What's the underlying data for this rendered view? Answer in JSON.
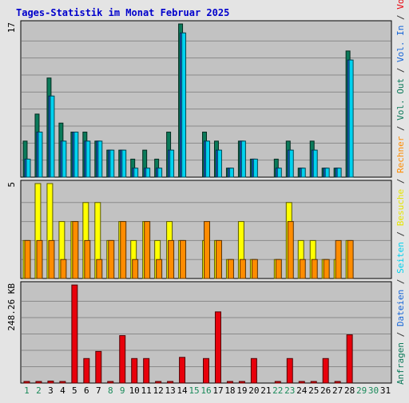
{
  "chart_data": {
    "type": "bar",
    "title": "Tages-Statistik im Monat Februar 2025",
    "x": [
      "1",
      "2",
      "3",
      "4",
      "5",
      "6",
      "7",
      "8",
      "9",
      "10",
      "11",
      "12",
      "13",
      "14",
      "15",
      "16",
      "17",
      "18",
      "19",
      "20",
      "21",
      "22",
      "23",
      "24",
      "25",
      "26",
      "27",
      "28",
      "29",
      "30",
      "31"
    ],
    "weekend_days": [
      "1",
      "2",
      "8",
      "9",
      "15",
      "16",
      "22",
      "23",
      "29",
      "30"
    ],
    "panels": [
      {
        "name": "top",
        "ymax": 17,
        "ymax_label": "17",
        "series": [
          {
            "name": "Anfragen",
            "color": "#0b7a5a",
            "values": [
              4,
              7,
              11,
              6,
              5,
              5,
              4,
              3,
              3,
              2,
              3,
              2,
              5,
              17,
              0,
              5,
              4,
              1,
              4,
              2,
              0,
              2,
              4,
              1,
              4,
              1,
              1,
              14,
              0,
              0,
              0
            ]
          },
          {
            "name": "Dateien",
            "color": "#1565d8",
            "values": [
              2,
              5,
              9,
              4,
              5,
              4,
              4,
              3,
              3,
              1,
              1,
              1,
              3,
              16,
              0,
              4,
              3,
              1,
              4,
              2,
              0,
              1,
              3,
              1,
              3,
              1,
              1,
              13,
              0,
              0,
              0
            ]
          },
          {
            "name": "Seiten",
            "color": "#00d2f0",
            "values": [
              2,
              5,
              9,
              4,
              5,
              4,
              4,
              3,
              3,
              1,
              1,
              1,
              3,
              16,
              0,
              4,
              3,
              1,
              4,
              2,
              0,
              1,
              3,
              1,
              3,
              1,
              1,
              13,
              0,
              0,
              0
            ]
          }
        ]
      },
      {
        "name": "middle",
        "ymax": 5,
        "ymax_label": "5",
        "series": [
          {
            "name": "Besuche",
            "color": "#ffff00",
            "values": [
              2,
              5,
              5,
              3,
              3,
              4,
              4,
              2,
              3,
              2,
              3,
              2,
              3,
              2,
              0,
              2,
              2,
              1,
              3,
              1,
              0,
              1,
              4,
              2,
              2,
              1,
              1,
              2,
              0,
              0,
              0
            ]
          },
          {
            "name": "Rechner",
            "color": "#ff8c00",
            "values": [
              2,
              2,
              2,
              1,
              3,
              2,
              1,
              2,
              3,
              1,
              3,
              1,
              2,
              2,
              0,
              3,
              2,
              1,
              1,
              1,
              0,
              1,
              3,
              1,
              1,
              1,
              2,
              2,
              0,
              0,
              0
            ]
          }
        ]
      },
      {
        "name": "bottom",
        "ymax": 248.26,
        "ymax_label": "248.26 KB",
        "unit": "KB",
        "series": [
          {
            "name": "Out",
            "color": "#0b7a5a",
            "values": [
              0,
              0,
              0,
              0,
              0,
              0,
              0,
              0,
              0,
              0,
              0,
              0,
              0,
              0,
              0,
              0,
              0,
              0,
              0,
              0,
              0,
              0,
              0,
              0,
              0,
              0,
              0,
              0,
              0,
              0,
              0
            ]
          },
          {
            "name": "Vol. In",
            "color": "#1565d8",
            "values": [
              0,
              0,
              0,
              0,
              0,
              0,
              0,
              0,
              0,
              0,
              0,
              0,
              0,
              0,
              0,
              0,
              0,
              0,
              0,
              0,
              0,
              0,
              0,
              0,
              0,
              0,
              0,
              0,
              0,
              0,
              0
            ]
          },
          {
            "name": "Volumen",
            "color": "#e8000b",
            "values": [
              3,
              3,
              5,
              3,
              248,
              62,
              80,
              3,
              120,
              62,
              62,
              3,
              3,
              65,
              0,
              62,
              180,
              3,
              3,
              62,
              0,
              3,
              62,
              3,
              3,
              62,
              3,
              122,
              0,
              0,
              0
            ]
          }
        ]
      }
    ],
    "right_legend": [
      {
        "text": "Anfragen",
        "color": "#0b7a5a"
      },
      {
        "text": "Dateien",
        "color": "#1565d8"
      },
      {
        "text": "Seiten",
        "color": "#00d2f0"
      },
      {
        "text": "Besuche",
        "color": "#e6e600"
      },
      {
        "text": "Rechner",
        "color": "#ff8c00"
      },
      {
        "text": "Vol. Out",
        "color": "#0b7a5a"
      },
      {
        "text": "Vol. In",
        "color": "#1565d8"
      },
      {
        "text": "Volumen",
        "color": "#e8000b"
      }
    ],
    "legend_separator": " / ",
    "colors": {
      "background": "#e4e4e4",
      "plot": "#c2c2c2",
      "title": "#0000cc",
      "weekday_label": "#000000",
      "weekend_label": "#1a8a5a"
    }
  }
}
